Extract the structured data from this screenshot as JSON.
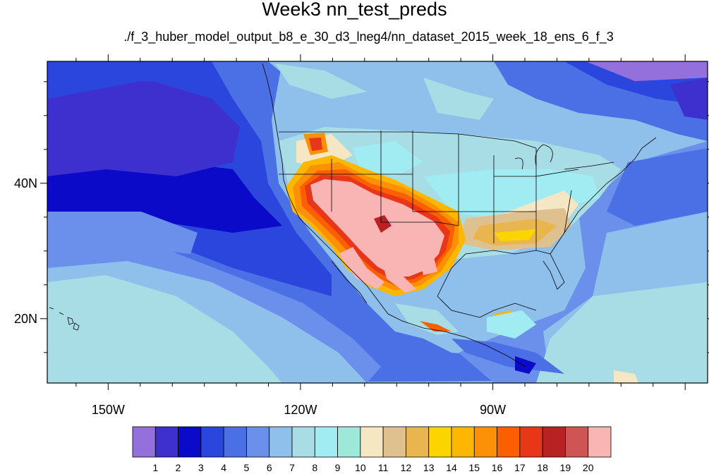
{
  "figure": {
    "title": "Week3 nn_test_preds",
    "subtitle": "./f_3_huber_model_output_b8_e_30_d3_lneg4/nn_dataset_2015_week_18_ens_6_f_3"
  },
  "axes": {
    "x_ticks": [
      {
        "value": -150,
        "label": "150W"
      },
      {
        "value": -120,
        "label": "120W"
      },
      {
        "value": -90,
        "label": "90W"
      }
    ],
    "y_ticks": [
      {
        "value": 40,
        "label": "40N"
      },
      {
        "value": 20,
        "label": "20N"
      }
    ],
    "lon_range": [
      -159.5,
      -56.5
    ],
    "lat_range": [
      10.5,
      58.0
    ]
  },
  "colorbar": {
    "levels": [
      "1",
      "2",
      "3",
      "4",
      "5",
      "6",
      "7",
      "8",
      "9",
      "10",
      "11",
      "12",
      "13",
      "14",
      "15",
      "16",
      "17",
      "18",
      "19",
      "20"
    ],
    "colors": [
      "#9370db",
      "#3e2fcf",
      "#0a0ac8",
      "#2a46dc",
      "#4b70e6",
      "#6a90ec",
      "#8fbfeb",
      "#a9dde6",
      "#a0ecf2",
      "#9ee8d9",
      "#f5e6c4",
      "#dfc08f",
      "#e9b54f",
      "#fcd400",
      "#fdb700",
      "#fc9006",
      "#fb5f00",
      "#e83618",
      "#b82222",
      "#cf5555",
      "#f9b4b4"
    ]
  }
}
